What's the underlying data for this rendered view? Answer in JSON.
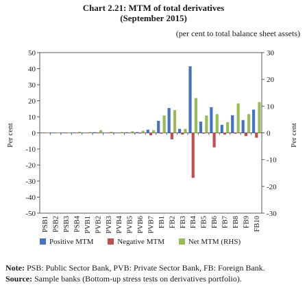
{
  "title": "Chart 2.21: MTM of total derivatives",
  "subtitle": "(September 2015)",
  "units": "(per cent to total balance sheet assets)",
  "notes": [
    {
      "label": "Note:",
      "text": "PSB: Public Sector Bank, PVB: Private Sector Bank, FB: Foreign Bank."
    },
    {
      "label": "Source:",
      "text": "Sample banks (Bottom-up stress tests on derivatives portfolio)."
    }
  ],
  "colors": {
    "positive": "#4472c4",
    "negative": "#c0504d",
    "net": "#9bbb59",
    "axis": "#595959"
  },
  "chart_data": {
    "type": "bar",
    "categories": [
      "PSB1",
      "PSB2",
      "PSB3",
      "PSB4",
      "PVB1",
      "PVB2",
      "PVB3",
      "PVB4",
      "PVB5",
      "PVB6",
      "PVB7",
      "FB1",
      "FB2",
      "FB3",
      "FB4",
      "FB5",
      "FB6",
      "FB7",
      "FB8",
      "FB9",
      "FB10"
    ],
    "ylabel": "Per cent",
    "ylabel_right": "Per cent",
    "ylim": [
      -50,
      50
    ],
    "yticks": [
      -50,
      -40,
      -30,
      -20,
      -10,
      0,
      10,
      20,
      30,
      40,
      50
    ],
    "ylim_right": [
      -30,
      30
    ],
    "yticks_right": [
      -30,
      -20,
      -10,
      0,
      10,
      20,
      30
    ],
    "legend_position": "bottom",
    "grid": false,
    "series": [
      {
        "name": "Positive MTM",
        "axis": "left",
        "color": "#4472c4",
        "values": [
          0.1,
          0.1,
          0.1,
          0.3,
          0.2,
          0.4,
          0.2,
          0.2,
          0.4,
          0.5,
          2.0,
          7.5,
          15.5,
          2.5,
          41.5,
          7.0,
          16.0,
          5.0,
          11.0,
          8.0,
          14.5
        ]
      },
      {
        "name": "Negative MTM",
        "axis": "left",
        "color": "#c0504d",
        "values": [
          -0.1,
          -0.1,
          -0.1,
          -0.2,
          -0.1,
          -0.3,
          -0.2,
          -0.2,
          -0.3,
          -0.4,
          -1.5,
          -0.5,
          -4.0,
          -1.0,
          -28.0,
          -0.5,
          -9.0,
          -1.0,
          -0.5,
          -2.0,
          -3.0
        ]
      },
      {
        "name": "Net MTM (RHS)",
        "axis": "right",
        "color": "#9bbb59",
        "values": [
          0.1,
          0.1,
          0.1,
          0.4,
          0.3,
          1.0,
          0.4,
          0.3,
          0.6,
          0.8,
          1.0,
          6.5,
          8.5,
          1.5,
          13.0,
          6.5,
          7.0,
          4.0,
          11.0,
          7.0,
          11.5
        ]
      }
    ]
  }
}
